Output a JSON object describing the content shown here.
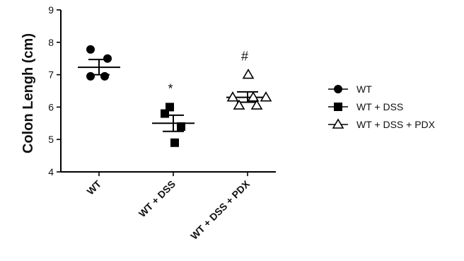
{
  "chart_data": {
    "type": "scatter",
    "title": "",
    "xlabel": "",
    "ylabel": "Colon Lengh (cm)",
    "ylim": [
      4,
      9
    ],
    "yticks": [
      "4",
      "5",
      "6",
      "7",
      "8",
      "9"
    ],
    "categories": [
      "WT",
      "WT + DSS",
      "WT + DSS + PDX"
    ],
    "series": [
      {
        "name": "WT",
        "marker": "circle",
        "category": 0,
        "points": [
          7.78,
          7.5,
          6.95,
          6.95
        ],
        "mean": 7.23,
        "sem_low": 7.0,
        "sem_high": 7.47,
        "annotation": ""
      },
      {
        "name": "WT + DSS",
        "marker": "square",
        "category": 1,
        "points": [
          6.0,
          5.8,
          5.4,
          4.9
        ],
        "mean": 5.5,
        "sem_low": 5.25,
        "sem_high": 5.75,
        "annotation": "*"
      },
      {
        "name": "WT + DSS + PDX",
        "marker": "triangle-open",
        "category": 2,
        "points": [
          7.0,
          6.3,
          6.3,
          6.05,
          6.05,
          6.3
        ],
        "mean": 6.3,
        "sem_low": 6.15,
        "sem_high": 6.47,
        "annotation": "#"
      }
    ],
    "legend_position": "right",
    "grid": false
  }
}
